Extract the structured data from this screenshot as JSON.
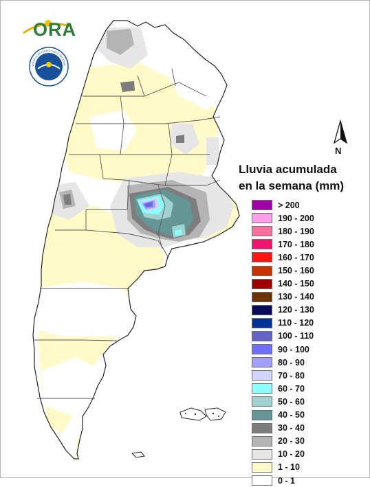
{
  "branding": {
    "ora_logo_text": "ORA",
    "smn_seal_label": "SERVICIO METEOROLOGICO NACIONAL ARGENTINA"
  },
  "north_arrow": {
    "label": "N"
  },
  "legend": {
    "title_line1": "Lluvia acumulada",
    "title_line2": "en la semana (mm)",
    "items": [
      {
        "label": "> 200",
        "color": "#a100a8"
      },
      {
        "label": "190 - 200",
        "color": "#ff9ee8"
      },
      {
        "label": "180 - 190",
        "color": "#ff6fa0"
      },
      {
        "label": "170 - 180",
        "color": "#f4146e"
      },
      {
        "label": "160 - 170",
        "color": "#ff1414"
      },
      {
        "label": "150 - 160",
        "color": "#c83200"
      },
      {
        "label": "140 - 150",
        "color": "#a00000"
      },
      {
        "label": "130 - 140",
        "color": "#6b3205"
      },
      {
        "label": "120 - 130",
        "color": "#0a0a5a"
      },
      {
        "label": "110 - 120",
        "color": "#003296"
      },
      {
        "label": "100 - 110",
        "color": "#6464c8"
      },
      {
        "label": "90 - 100",
        "color": "#6e6eff"
      },
      {
        "label": "80 - 90",
        "color": "#a0a0ff"
      },
      {
        "label": "70 - 80",
        "color": "#d2d2ff"
      },
      {
        "label": "60 - 70",
        "color": "#8cffff"
      },
      {
        "label": "50 - 60",
        "color": "#a0d2d2"
      },
      {
        "label": "40 - 50",
        "color": "#649696"
      },
      {
        "label": "30 - 40",
        "color": "#7d7d7d"
      },
      {
        "label": "20 - 30",
        "color": "#b4b4b4"
      },
      {
        "label": "10 - 20",
        "color": "#e6e6e6"
      },
      {
        "label": "1 - 10",
        "color": "#fffac8"
      },
      {
        "label": "0 - 1",
        "color": "#ffffff"
      }
    ]
  }
}
